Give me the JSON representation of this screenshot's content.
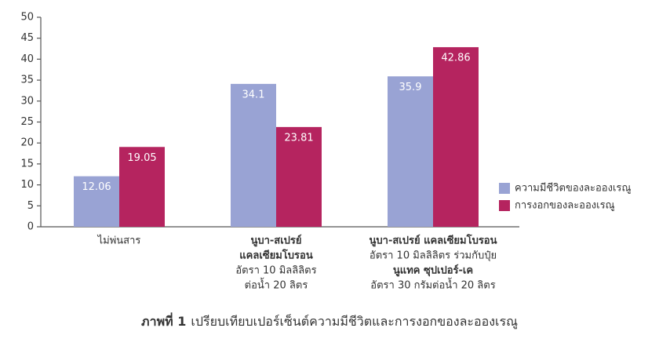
{
  "chart_data": {
    "type": "bar",
    "title_prefix": "ภาพที่ 1",
    "title": "เปรียบเทียบเปอร์เซ็นต์ความมีชีวิตและการงอกของละอองเรณู",
    "categories": [
      [
        "ไม่พ่นสาร"
      ],
      [
        "นูบา-สเปรย์",
        "แคลเซียมโบรอน",
        "อัตรา 10 มิลลิลิตร",
        "ต่อน้ำ 20 ลิตร"
      ],
      [
        "นูบา-สเปรย์ แคลเซียมโบรอน",
        "อัตรา 10 มิลลิลิตร ร่วมกับปุ๋ย",
        "นูแทค ซุปเปอร์-เค",
        "อัตรา 30 กรัมต่อน้ำ 20 ลิตร"
      ]
    ],
    "category_line_bold": [
      [
        false
      ],
      [
        true,
        true,
        false,
        false
      ],
      [
        true,
        false,
        true,
        false
      ]
    ],
    "series": [
      {
        "name": "ความมีชีวิตของละอองเรณู",
        "color": "#99a3d4",
        "values": [
          12.06,
          34.1,
          35.9
        ]
      },
      {
        "name": "การงอกของละอองเรณู",
        "color": "#b5245f",
        "values": [
          19.05,
          23.81,
          42.86
        ]
      }
    ],
    "ylim": [
      0,
      50
    ],
    "yticks": [
      0,
      5,
      10,
      15,
      20,
      25,
      30,
      35,
      40,
      45,
      50
    ],
    "grid": false,
    "legend": "right"
  }
}
